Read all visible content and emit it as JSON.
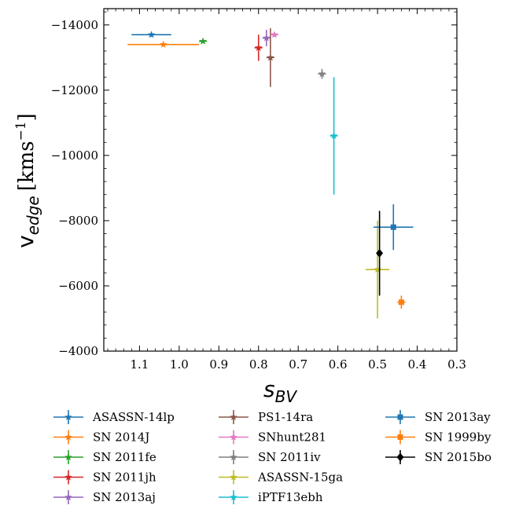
{
  "chart_data": {
    "type": "scatter",
    "xlabel": "s",
    "xlabel_sub": "BV",
    "ylabel": "v",
    "ylabel_sub": "edge",
    "ylabel_unit": "[kms",
    "ylabel_unit_sup": "−1",
    "ylabel_unit_close": "]",
    "xlim": [
      1.19,
      0.3
    ],
    "ylim": [
      -4000,
      -14500
    ],
    "x_ticks": [
      1.1,
      1.0,
      0.9,
      0.8,
      0.7,
      0.6,
      0.5,
      0.4,
      0.3
    ],
    "x_tick_labels": [
      "1.1",
      "1.0",
      "0.9",
      "0.8",
      "0.7",
      "0.6",
      "0.5",
      "0.4",
      "0.3"
    ],
    "y_ticks": [
      -14000,
      -12000,
      -10000,
      -8000,
      -6000,
      -4000
    ],
    "y_tick_labels": [
      "−14000",
      "−12000",
      "−10000",
      "−8000",
      "−6000",
      "−4000"
    ],
    "grid": false,
    "legend_position": "bottom-outside",
    "series": [
      {
        "name": "ASASSN-14lp",
        "color": "#1f77b4",
        "marker": "star",
        "x": 1.07,
        "y": -13700,
        "xerr": 0.05,
        "yerr": 60
      },
      {
        "name": "SN 2014J",
        "color": "#ff7f0e",
        "marker": "star",
        "x": 1.04,
        "y": -13400,
        "xerr": 0.09,
        "yerr": 60
      },
      {
        "name": "SN 2011fe",
        "color": "#2ca02c",
        "marker": "star",
        "x": 0.94,
        "y": -13500,
        "xerr": 0.01,
        "yerr": 60
      },
      {
        "name": "SN 2011jh",
        "color": "#d62728",
        "marker": "star",
        "x": 0.8,
        "y": -13300,
        "xerr": 0.01,
        "yerr": 400
      },
      {
        "name": "SN 2013aj",
        "color": "#9467bd",
        "marker": "star",
        "x": 0.78,
        "y": -13600,
        "xerr": 0.01,
        "yerr": 250
      },
      {
        "name": "PS1-14ra",
        "color": "#8c564b",
        "marker": "star",
        "x": 0.77,
        "y": -13000,
        "xerr": 0.01,
        "yerr": 900
      },
      {
        "name": "SNhunt281",
        "color": "#e377c2",
        "marker": "star",
        "x": 0.76,
        "y": -13700,
        "xerr": 0.01,
        "yerr": 60
      },
      {
        "name": "SN 2011iv",
        "color": "#7f7f7f",
        "marker": "star",
        "x": 0.64,
        "y": -12500,
        "xerr": 0.01,
        "yerr": 150
      },
      {
        "name": "ASASSN-15ga",
        "color": "#bcbd22",
        "marker": "star",
        "x": 0.5,
        "y": -6500,
        "xerr": 0.03,
        "yerr": 1500
      },
      {
        "name": "iPTF13ebh",
        "color": "#17becf",
        "marker": "star",
        "x": 0.61,
        "y": -10600,
        "xerr": 0.01,
        "yerr": 1800
      },
      {
        "name": "SN 2013ay",
        "color": "#1f77b4",
        "marker": "square",
        "x": 0.46,
        "y": -7800,
        "xerr": 0.05,
        "yerr": 700
      },
      {
        "name": "SN 1999by",
        "color": "#ff7f0e",
        "marker": "square",
        "x": 0.44,
        "y": -5500,
        "xerr": 0.01,
        "yerr": 200
      },
      {
        "name": "SN 2015bo",
        "color": "#000000",
        "marker": "diamond",
        "x": 0.495,
        "y": -7000,
        "xerr": 0.005,
        "yerr": 1300
      }
    ]
  }
}
